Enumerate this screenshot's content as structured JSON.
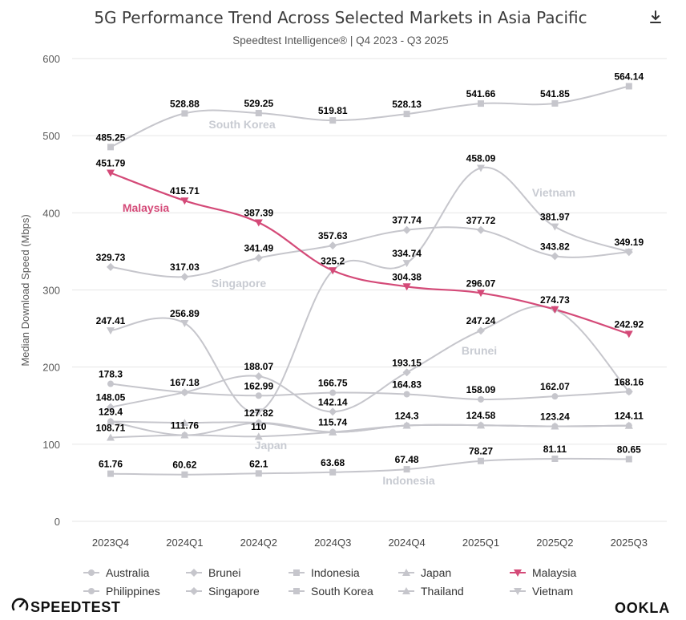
{
  "download_icon": "download-icon",
  "brand": {
    "speedtest_label": "SPEEDTEST",
    "ookla_label": "OOKLA"
  },
  "colors": {
    "highlight": "#d44a78",
    "muted": "#c6c6cc",
    "muted_label": "#c8cbd2",
    "value_label": "#000000",
    "axis_text": "#5a5a5a",
    "grid": "#e6e6e6"
  },
  "chart_data": {
    "type": "line",
    "title": "5G Performance Trend Across Selected Markets in Asia Pacific",
    "subtitle": "Speedtest Intelligence® | Q4 2023 - Q3 2025",
    "xlabel": "",
    "ylabel": "Median Download Speed (Mbps)",
    "ylim": [
      0,
      600
    ],
    "yticks": [
      0,
      100,
      200,
      300,
      400,
      500,
      600
    ],
    "grid": true,
    "legend_position": "bottom",
    "categories": [
      "2023Q4",
      "2024Q1",
      "2024Q2",
      "2024Q3",
      "2024Q4",
      "2025Q1",
      "2025Q2",
      "2025Q3"
    ],
    "series": [
      {
        "name": "Australia",
        "marker": "circle",
        "highlight": false,
        "values": [
          129.4,
          111.76,
          127.82,
          115.74,
          124.3,
          124.58,
          123.24,
          124.11
        ]
      },
      {
        "name": "Brunei",
        "marker": "diamond",
        "highlight": false,
        "inline_label": "Brunei",
        "values": [
          148.05,
          167.18,
          188.07,
          142.14,
          193.15,
          247.24,
          274.73,
          168.16
        ]
      },
      {
        "name": "Indonesia",
        "marker": "square",
        "highlight": false,
        "inline_label": "Indonesia",
        "values": [
          61.76,
          60.62,
          62.1,
          63.68,
          67.48,
          78.27,
          81.11,
          80.65
        ]
      },
      {
        "name": "Japan",
        "marker": "triangle-up",
        "highlight": false,
        "inline_label": "Japan",
        "values": [
          108.71,
          111.76,
          110,
          115.74,
          124.3,
          124.58,
          123.24,
          124.11
        ]
      },
      {
        "name": "Malaysia",
        "marker": "triangle-down",
        "highlight": true,
        "inline_label": "Malaysia",
        "values": [
          451.79,
          415.71,
          387.39,
          325.2,
          304.38,
          296.07,
          274.73,
          242.92
        ]
      },
      {
        "name": "Philippines",
        "marker": "circle",
        "highlight": false,
        "values": [
          178.3,
          167.18,
          162.99,
          166.75,
          164.83,
          158.09,
          162.07,
          168.16
        ]
      },
      {
        "name": "Singapore",
        "marker": "diamond",
        "highlight": false,
        "inline_label": "Singapore",
        "values": [
          329.73,
          317.03,
          341.49,
          357.63,
          377.74,
          377.72,
          343.82,
          349.19
        ]
      },
      {
        "name": "South Korea",
        "marker": "square",
        "highlight": false,
        "inline_label": "South Korea",
        "values": [
          485.25,
          528.88,
          529.25,
          519.81,
          528.13,
          541.66,
          541.85,
          564.14
        ]
      },
      {
        "name": "Thailand",
        "marker": "triangle-up",
        "highlight": false,
        "values": [
          129.4,
          127.82,
          127.82,
          115.74,
          124.3,
          124.58,
          123.24,
          124.11
        ]
      },
      {
        "name": "Vietnam",
        "marker": "triangle-down",
        "highlight": false,
        "inline_label": "Vietnam",
        "values": [
          247.41,
          256.89,
          142.14,
          325.2,
          334.74,
          458.09,
          381.97,
          349.19
        ]
      }
    ],
    "data_labels": [
      {
        "category": "2023Q4",
        "value": 485.25,
        "text": "485.25"
      },
      {
        "category": "2023Q4",
        "value": 451.79,
        "text": "451.79"
      },
      {
        "category": "2023Q4",
        "value": 329.73,
        "text": "329.73"
      },
      {
        "category": "2023Q4",
        "value": 247.41,
        "text": "247.41"
      },
      {
        "category": "2023Q4",
        "value": 178.3,
        "text": "178.3"
      },
      {
        "category": "2023Q4",
        "value": 148.05,
        "text": "148.05"
      },
      {
        "category": "2023Q4",
        "value": 129.4,
        "text": "129.4"
      },
      {
        "category": "2023Q4",
        "value": 108.71,
        "text": "108.71"
      },
      {
        "category": "2023Q4",
        "value": 61.76,
        "text": "61.76"
      },
      {
        "category": "2024Q1",
        "value": 528.88,
        "text": "528.88"
      },
      {
        "category": "2024Q1",
        "value": 415.71,
        "text": "415.71"
      },
      {
        "category": "2024Q1",
        "value": 317.03,
        "text": "317.03"
      },
      {
        "category": "2024Q1",
        "value": 256.89,
        "text": "256.89"
      },
      {
        "category": "2024Q1",
        "value": 167.18,
        "text": "167.18"
      },
      {
        "category": "2024Q1",
        "value": 111.76,
        "text": "111.76"
      },
      {
        "category": "2024Q1",
        "value": 60.62,
        "text": "60.62"
      },
      {
        "category": "2024Q2",
        "value": 529.25,
        "text": "529.25"
      },
      {
        "category": "2024Q2",
        "value": 387.39,
        "text": "387.39"
      },
      {
        "category": "2024Q2",
        "value": 341.49,
        "text": "341.49"
      },
      {
        "category": "2024Q2",
        "value": 188.07,
        "text": "188.07"
      },
      {
        "category": "2024Q2",
        "value": 162.99,
        "text": "162.99"
      },
      {
        "category": "2024Q2",
        "value": 127.82,
        "text": "127.82"
      },
      {
        "category": "2024Q2",
        "value": 110,
        "text": "110"
      },
      {
        "category": "2024Q2",
        "value": 62.1,
        "text": "62.1"
      },
      {
        "category": "2024Q3",
        "value": 519.81,
        "text": "519.81"
      },
      {
        "category": "2024Q3",
        "value": 357.63,
        "text": "357.63"
      },
      {
        "category": "2024Q3",
        "value": 325.2,
        "text": "325.2"
      },
      {
        "category": "2024Q3",
        "value": 166.75,
        "text": "166.75"
      },
      {
        "category": "2024Q3",
        "value": 142.14,
        "text": "142.14"
      },
      {
        "category": "2024Q3",
        "value": 115.74,
        "text": "115.74"
      },
      {
        "category": "2024Q3",
        "value": 63.68,
        "text": "63.68"
      },
      {
        "category": "2024Q4",
        "value": 528.13,
        "text": "528.13"
      },
      {
        "category": "2024Q4",
        "value": 377.74,
        "text": "377.74"
      },
      {
        "category": "2024Q4",
        "value": 334.74,
        "text": "334.74"
      },
      {
        "category": "2024Q4",
        "value": 304.38,
        "text": "304.38"
      },
      {
        "category": "2024Q4",
        "value": 193.15,
        "text": "193.15"
      },
      {
        "category": "2024Q4",
        "value": 164.83,
        "text": "164.83"
      },
      {
        "category": "2024Q4",
        "value": 124.3,
        "text": "124.3"
      },
      {
        "category": "2024Q4",
        "value": 67.48,
        "text": "67.48"
      },
      {
        "category": "2025Q1",
        "value": 541.66,
        "text": "541.66"
      },
      {
        "category": "2025Q1",
        "value": 458.09,
        "text": "458.09"
      },
      {
        "category": "2025Q1",
        "value": 377.72,
        "text": "377.72"
      },
      {
        "category": "2025Q1",
        "value": 296.07,
        "text": "296.07"
      },
      {
        "category": "2025Q1",
        "value": 247.24,
        "text": "247.24"
      },
      {
        "category": "2025Q1",
        "value": 158.09,
        "text": "158.09"
      },
      {
        "category": "2025Q1",
        "value": 124.58,
        "text": "124.58"
      },
      {
        "category": "2025Q1",
        "value": 78.27,
        "text": "78.27"
      },
      {
        "category": "2025Q2",
        "value": 541.85,
        "text": "541.85"
      },
      {
        "category": "2025Q2",
        "value": 381.97,
        "text": "381.97"
      },
      {
        "category": "2025Q2",
        "value": 343.82,
        "text": "343.82"
      },
      {
        "category": "2025Q2",
        "value": 274.73,
        "text": "274.73"
      },
      {
        "category": "2025Q2",
        "value": 162.07,
        "text": "162.07"
      },
      {
        "category": "2025Q2",
        "value": 123.24,
        "text": "123.24"
      },
      {
        "category": "2025Q2",
        "value": 81.11,
        "text": "81.11"
      },
      {
        "category": "2025Q3",
        "value": 564.14,
        "text": "564.14"
      },
      {
        "category": "2025Q3",
        "value": 349.19,
        "text": "349.19"
      },
      {
        "category": "2025Q3",
        "value": 242.92,
        "text": "242.92"
      },
      {
        "category": "2025Q3",
        "value": 168.16,
        "text": "168.16"
      },
      {
        "category": "2025Q3",
        "value": 124.11,
        "text": "124.11"
      },
      {
        "category": "2025Q3",
        "value": 80.65,
        "text": "80.65"
      }
    ]
  }
}
